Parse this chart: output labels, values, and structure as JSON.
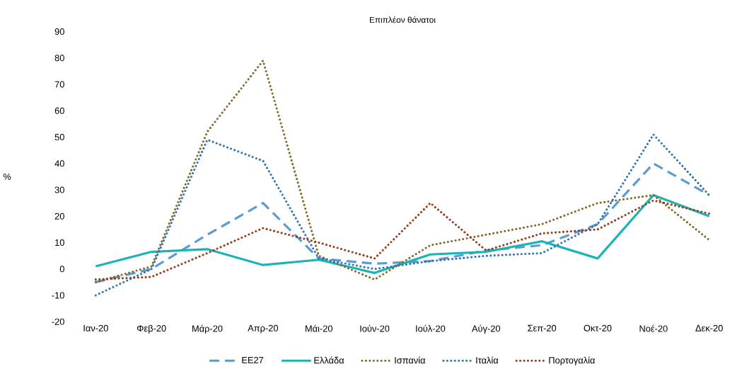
{
  "chart_data": {
    "type": "line",
    "title": "Επιπλέον θάνατοι",
    "ylabel": "%",
    "categories": [
      "Ιαν-20",
      "Φεβ-20",
      "Μάρ-20",
      "Απρ-20",
      "Μάι-20",
      "Ιούν-20",
      "Ιούλ-20",
      "Αύγ-20",
      "Σεπ-20",
      "Οκτ-20",
      "Νοέ-20",
      "Δεκ-20"
    ],
    "ylim": [
      -20,
      90
    ],
    "yticks": [
      -20,
      -10,
      0,
      10,
      20,
      30,
      40,
      50,
      60,
      70,
      80,
      90
    ],
    "legend": "bottom",
    "series": [
      {
        "name": "ΕΕ27",
        "color": "#5b9bd5",
        "line_style": "dashed",
        "values": [
          -5,
          0,
          13,
          25,
          4,
          2,
          3,
          7,
          9,
          17,
          40,
          28
        ]
      },
      {
        "name": "Ελλάδα",
        "color": "#1cb3b8",
        "line_style": "solid",
        "values": [
          1,
          6.5,
          7.5,
          1.5,
          3.5,
          -1.5,
          5.5,
          6.5,
          10.5,
          4,
          28,
          20
        ]
      },
      {
        "name": "Ισπανία",
        "color": "#846b28",
        "line_style": "dotted",
        "values": [
          -5,
          1,
          52,
          79,
          5,
          -4,
          9,
          13,
          17,
          25,
          28,
          11
        ]
      },
      {
        "name": "Ιταλία",
        "color": "#2e75b6",
        "line_style": "dotted",
        "values": [
          -10,
          0,
          49,
          41,
          4,
          0,
          3,
          5,
          6,
          17,
          51,
          28
        ]
      },
      {
        "name": "Πορτογαλία",
        "color": "#943d18",
        "line_style": "dotted",
        "values": [
          -4,
          -3,
          6,
          15.5,
          10,
          4,
          25,
          7,
          13.5,
          15,
          26,
          21
        ]
      }
    ]
  }
}
